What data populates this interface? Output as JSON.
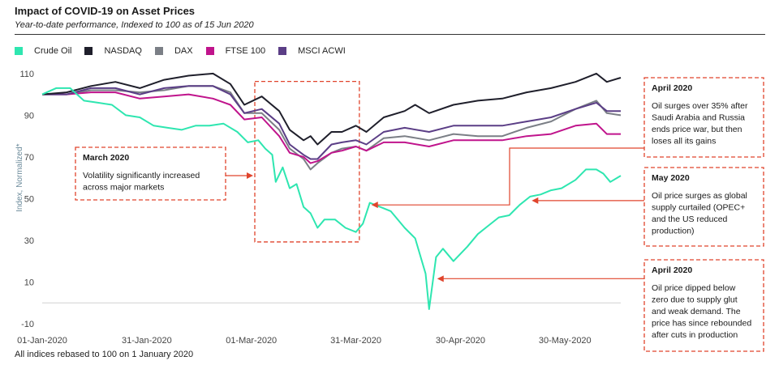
{
  "header": {
    "title": "Impact of COVID-19 on Asset Prices",
    "subtitle": "Year-to-date performance, Indexed to 100 as of 15 Jun 2020"
  },
  "footer": {
    "note": "All indices rebased to 100 on 1 January  2020"
  },
  "colors": {
    "crude_oil": "#2ee6b0",
    "nasdaq": "#1f1f2b",
    "dax": "#7b7f86",
    "ftse": "#c0148c",
    "msci": "#5b3e86",
    "annotation": "#e0442c"
  },
  "chart_data": {
    "type": "line",
    "title": "Impact of COVID-19 on Asset Prices",
    "subtitle": "Year-to-date performance, Indexed to 100 as of 15 Jun 2020",
    "ylabel": "Index, Normalized*",
    "xlabel": "",
    "ylim": [
      -10,
      115
    ],
    "yticks": [
      -10,
      10,
      30,
      50,
      70,
      90,
      110
    ],
    "xlim": [
      "2020-01-01",
      "2020-06-15"
    ],
    "xticks": [
      {
        "date": "2020-01-01",
        "label": "01-Jan-2020"
      },
      {
        "date": "2020-01-31",
        "label": "31-Jan-2020"
      },
      {
        "date": "2020-03-01",
        "label": "01-Mar-2020"
      },
      {
        "date": "2020-03-31",
        "label": "31-Mar-2020"
      },
      {
        "date": "2020-04-30",
        "label": "30-Apr-2020"
      },
      {
        "date": "2020-05-30",
        "label": "30-May-2020"
      }
    ],
    "grid": false,
    "legend_position": "top-left",
    "series": [
      {
        "name": "Crude Oil",
        "color": "#2ee6b0",
        "points": [
          [
            "2020-01-01",
            100
          ],
          [
            "2020-01-05",
            103
          ],
          [
            "2020-01-09",
            103
          ],
          [
            "2020-01-13",
            97
          ],
          [
            "2020-01-17",
            96
          ],
          [
            "2020-01-21",
            95
          ],
          [
            "2020-01-25",
            90
          ],
          [
            "2020-01-29",
            89
          ],
          [
            "2020-02-02",
            85
          ],
          [
            "2020-02-06",
            84
          ],
          [
            "2020-02-10",
            83
          ],
          [
            "2020-02-14",
            85
          ],
          [
            "2020-02-18",
            85
          ],
          [
            "2020-02-22",
            86
          ],
          [
            "2020-02-26",
            82
          ],
          [
            "2020-02-29",
            77
          ],
          [
            "2020-03-03",
            78
          ],
          [
            "2020-03-05",
            74
          ],
          [
            "2020-03-07",
            71
          ],
          [
            "2020-03-08",
            58
          ],
          [
            "2020-03-10",
            65
          ],
          [
            "2020-03-12",
            55
          ],
          [
            "2020-03-14",
            57
          ],
          [
            "2020-03-16",
            46
          ],
          [
            "2020-03-18",
            43
          ],
          [
            "2020-03-20",
            36
          ],
          [
            "2020-03-22",
            40
          ],
          [
            "2020-03-25",
            40
          ],
          [
            "2020-03-28",
            36
          ],
          [
            "2020-03-31",
            34
          ],
          [
            "2020-04-02",
            38
          ],
          [
            "2020-04-04",
            48
          ],
          [
            "2020-04-07",
            46
          ],
          [
            "2020-04-10",
            44
          ],
          [
            "2020-04-14",
            36
          ],
          [
            "2020-04-17",
            31
          ],
          [
            "2020-04-20",
            14
          ],
          [
            "2020-04-21",
            -3
          ],
          [
            "2020-04-23",
            22
          ],
          [
            "2020-04-25",
            26
          ],
          [
            "2020-04-28",
            20
          ],
          [
            "2020-05-02",
            27
          ],
          [
            "2020-05-05",
            33
          ],
          [
            "2020-05-08",
            37
          ],
          [
            "2020-05-11",
            41
          ],
          [
            "2020-05-14",
            42
          ],
          [
            "2020-05-17",
            47
          ],
          [
            "2020-05-20",
            51
          ],
          [
            "2020-05-23",
            52
          ],
          [
            "2020-05-26",
            54
          ],
          [
            "2020-05-29",
            55
          ],
          [
            "2020-06-02",
            59
          ],
          [
            "2020-06-05",
            64
          ],
          [
            "2020-06-08",
            64
          ],
          [
            "2020-06-10",
            62
          ],
          [
            "2020-06-12",
            58
          ],
          [
            "2020-06-15",
            61
          ]
        ]
      },
      {
        "name": "NASDAQ",
        "color": "#1f1f2b",
        "points": [
          [
            "2020-01-01",
            100
          ],
          [
            "2020-01-08",
            101
          ],
          [
            "2020-01-15",
            104
          ],
          [
            "2020-01-22",
            106
          ],
          [
            "2020-01-29",
            103
          ],
          [
            "2020-02-05",
            107
          ],
          [
            "2020-02-12",
            109
          ],
          [
            "2020-02-19",
            110
          ],
          [
            "2020-02-24",
            105
          ],
          [
            "2020-02-28",
            95
          ],
          [
            "2020-03-04",
            99
          ],
          [
            "2020-03-09",
            92
          ],
          [
            "2020-03-12",
            83
          ],
          [
            "2020-03-16",
            78
          ],
          [
            "2020-03-18",
            80
          ],
          [
            "2020-03-20",
            76
          ],
          [
            "2020-03-24",
            82
          ],
          [
            "2020-03-27",
            82
          ],
          [
            "2020-03-31",
            85
          ],
          [
            "2020-04-03",
            82
          ],
          [
            "2020-04-08",
            89
          ],
          [
            "2020-04-14",
            92
          ],
          [
            "2020-04-17",
            95
          ],
          [
            "2020-04-21",
            91
          ],
          [
            "2020-04-28",
            95
          ],
          [
            "2020-05-05",
            97
          ],
          [
            "2020-05-12",
            98
          ],
          [
            "2020-05-19",
            101
          ],
          [
            "2020-05-26",
            103
          ],
          [
            "2020-06-02",
            106
          ],
          [
            "2020-06-08",
            110
          ],
          [
            "2020-06-11",
            106
          ],
          [
            "2020-06-15",
            108
          ]
        ]
      },
      {
        "name": "DAX",
        "color": "#7b7f86",
        "points": [
          [
            "2020-01-01",
            100
          ],
          [
            "2020-01-08",
            100
          ],
          [
            "2020-01-15",
            102
          ],
          [
            "2020-01-22",
            102
          ],
          [
            "2020-01-29",
            101
          ],
          [
            "2020-02-05",
            102
          ],
          [
            "2020-02-12",
            104
          ],
          [
            "2020-02-19",
            104
          ],
          [
            "2020-02-24",
            101
          ],
          [
            "2020-02-28",
            91
          ],
          [
            "2020-03-04",
            91
          ],
          [
            "2020-03-09",
            83
          ],
          [
            "2020-03-12",
            74
          ],
          [
            "2020-03-16",
            69
          ],
          [
            "2020-03-18",
            64
          ],
          [
            "2020-03-20",
            67
          ],
          [
            "2020-03-24",
            72
          ],
          [
            "2020-03-27",
            74
          ],
          [
            "2020-03-31",
            75
          ],
          [
            "2020-04-03",
            73
          ],
          [
            "2020-04-08",
            79
          ],
          [
            "2020-04-14",
            80
          ],
          [
            "2020-04-21",
            78
          ],
          [
            "2020-04-28",
            81
          ],
          [
            "2020-05-05",
            80
          ],
          [
            "2020-05-12",
            80
          ],
          [
            "2020-05-19",
            84
          ],
          [
            "2020-05-26",
            87
          ],
          [
            "2020-06-02",
            93
          ],
          [
            "2020-06-08",
            97
          ],
          [
            "2020-06-11",
            91
          ],
          [
            "2020-06-15",
            90
          ]
        ]
      },
      {
        "name": "FTSE 100",
        "color": "#c0148c",
        "points": [
          [
            "2020-01-01",
            100
          ],
          [
            "2020-01-08",
            100
          ],
          [
            "2020-01-15",
            101
          ],
          [
            "2020-01-22",
            101
          ],
          [
            "2020-01-29",
            98
          ],
          [
            "2020-02-05",
            99
          ],
          [
            "2020-02-12",
            100
          ],
          [
            "2020-02-19",
            98
          ],
          [
            "2020-02-24",
            95
          ],
          [
            "2020-02-28",
            88
          ],
          [
            "2020-03-04",
            89
          ],
          [
            "2020-03-09",
            80
          ],
          [
            "2020-03-12",
            72
          ],
          [
            "2020-03-16",
            70
          ],
          [
            "2020-03-18",
            67
          ],
          [
            "2020-03-20",
            68
          ],
          [
            "2020-03-24",
            72
          ],
          [
            "2020-03-27",
            73
          ],
          [
            "2020-03-31",
            75
          ],
          [
            "2020-04-03",
            73
          ],
          [
            "2020-04-08",
            77
          ],
          [
            "2020-04-14",
            77
          ],
          [
            "2020-04-21",
            75
          ],
          [
            "2020-04-28",
            78
          ],
          [
            "2020-05-05",
            78
          ],
          [
            "2020-05-12",
            78
          ],
          [
            "2020-05-19",
            80
          ],
          [
            "2020-05-26",
            81
          ],
          [
            "2020-06-02",
            85
          ],
          [
            "2020-06-08",
            86
          ],
          [
            "2020-06-11",
            81
          ],
          [
            "2020-06-15",
            81
          ]
        ]
      },
      {
        "name": "MSCI ACWI",
        "color": "#5b3e86",
        "points": [
          [
            "2020-01-01",
            100
          ],
          [
            "2020-01-08",
            100
          ],
          [
            "2020-01-15",
            103
          ],
          [
            "2020-01-22",
            103
          ],
          [
            "2020-01-29",
            100
          ],
          [
            "2020-02-05",
            103
          ],
          [
            "2020-02-12",
            104
          ],
          [
            "2020-02-19",
            104
          ],
          [
            "2020-02-24",
            100
          ],
          [
            "2020-02-28",
            91
          ],
          [
            "2020-03-04",
            93
          ],
          [
            "2020-03-09",
            86
          ],
          [
            "2020-03-12",
            76
          ],
          [
            "2020-03-16",
            71
          ],
          [
            "2020-03-18",
            69
          ],
          [
            "2020-03-20",
            69
          ],
          [
            "2020-03-24",
            76
          ],
          [
            "2020-03-27",
            77
          ],
          [
            "2020-03-31",
            78
          ],
          [
            "2020-04-03",
            76
          ],
          [
            "2020-04-08",
            82
          ],
          [
            "2020-04-14",
            84
          ],
          [
            "2020-04-21",
            82
          ],
          [
            "2020-04-28",
            85
          ],
          [
            "2020-05-05",
            85
          ],
          [
            "2020-05-12",
            85
          ],
          [
            "2020-05-19",
            87
          ],
          [
            "2020-05-26",
            89
          ],
          [
            "2020-06-02",
            93
          ],
          [
            "2020-06-08",
            96
          ],
          [
            "2020-06-11",
            92
          ],
          [
            "2020-06-15",
            92
          ]
        ]
      }
    ],
    "annotations": [
      {
        "id": "march-2020",
        "title": "March 2020",
        "lines": [
          "Volatility significantly increased",
          "across major markets"
        ],
        "target_date": "2020-03-03",
        "target_value": 61,
        "highlight_range": [
          "2020-03-02",
          "2020-04-01"
        ],
        "highlight_value_range": [
          30,
          100
        ]
      },
      {
        "id": "april-2020-oil-surge",
        "title": "April 2020",
        "lines": [
          "Oil surges over 35%  after",
          "Saudi Arabia and Russia",
          "ends price war, but then",
          "loses all its gains"
        ],
        "target_date": "2020-04-04",
        "target_value": 47
      },
      {
        "id": "may-2020",
        "title": "May 2020",
        "lines": [
          "Oil price surges as global",
          "supply curtailed (OPEC+",
          "and the US reduced",
          "production)"
        ],
        "target_date": "2020-05-20",
        "target_value": 51
      },
      {
        "id": "april-2020-oil-dip",
        "title": "April 2020",
        "lines": [
          "Oil price dipped below",
          "zero due to supply glut",
          "and weak demand. The",
          "price has since rebounded",
          "after cuts in production"
        ],
        "target_date": "2020-04-21",
        "target_value": 12
      }
    ]
  }
}
